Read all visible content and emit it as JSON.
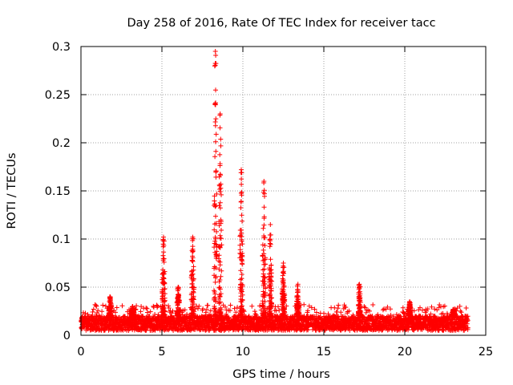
{
  "chart_data": {
    "type": "scatter",
    "title": "Day 258 of 2016, Rate Of TEC Index for receiver tacc",
    "xlabel": "GPS time / hours",
    "ylabel": "ROTI / TECUs",
    "xlim": [
      0,
      25
    ],
    "ylim": [
      0,
      0.3
    ],
    "x_ticks": [
      0,
      5,
      10,
      15,
      20,
      25
    ],
    "x_tick_labels": [
      "0",
      "5",
      "10",
      "15",
      "20",
      "25"
    ],
    "y_ticks": [
      0,
      0.05,
      0.1,
      0.15,
      0.2,
      0.25,
      0.3
    ],
    "y_tick_labels": [
      "0",
      "0.05",
      "0.1",
      "0.15",
      "0.2",
      "0.25",
      "0.3"
    ],
    "grid": true,
    "marker": "+",
    "color": "#ff0000",
    "series": [
      {
        "name": "ROTI",
        "x_range": [
          0,
          23.9
        ],
        "baseline_range": [
          0.005,
          0.02
        ],
        "spikes": [
          {
            "x": 1.8,
            "y": 0.04
          },
          {
            "x": 3.2,
            "y": 0.03
          },
          {
            "x": 5.1,
            "y": 0.102
          },
          {
            "x": 6.0,
            "y": 0.05
          },
          {
            "x": 6.9,
            "y": 0.102
          },
          {
            "x": 8.3,
            "y": 0.295
          },
          {
            "x": 8.6,
            "y": 0.23
          },
          {
            "x": 9.9,
            "y": 0.172
          },
          {
            "x": 11.3,
            "y": 0.16
          },
          {
            "x": 11.7,
            "y": 0.115
          },
          {
            "x": 12.5,
            "y": 0.075
          },
          {
            "x": 13.4,
            "y": 0.053
          },
          {
            "x": 17.2,
            "y": 0.053
          },
          {
            "x": 20.3,
            "y": 0.035
          },
          {
            "x": 23.0,
            "y": 0.027
          }
        ]
      }
    ]
  }
}
